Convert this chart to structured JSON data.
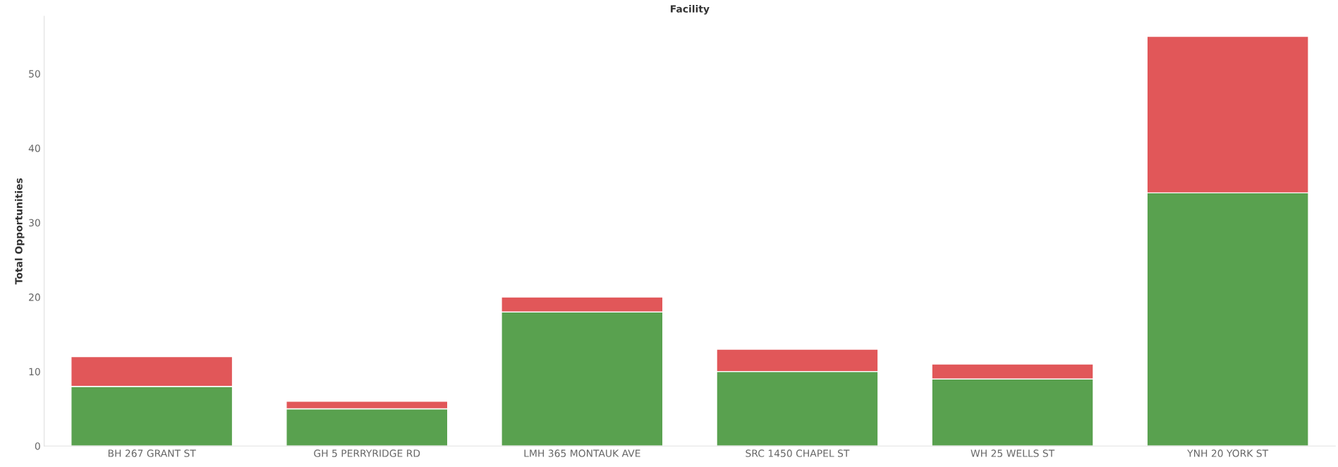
{
  "chart_data": {
    "type": "bar",
    "title": "Facility",
    "ylabel": "Total Opportunities",
    "categories": [
      "BH 267 GRANT ST",
      "GH 5 PERRYRIDGE RD",
      "LMH 365 MONTAUK AVE",
      "SRC 1450 CHAPEL ST",
      "WH 25 WELLS ST",
      "YNH 20 YORK ST"
    ],
    "series": [
      {
        "color": "#59a14f",
        "values": [
          8,
          5,
          18,
          10,
          9,
          34
        ]
      },
      {
        "color": "#e15759",
        "values": [
          4,
          1,
          2,
          3,
          2,
          21
        ]
      }
    ],
    "stacked": true,
    "ylim": [
      0,
      57.7
    ],
    "yticks": [
      0,
      10,
      20,
      30,
      40,
      50
    ],
    "grid": false,
    "legend": false
  }
}
